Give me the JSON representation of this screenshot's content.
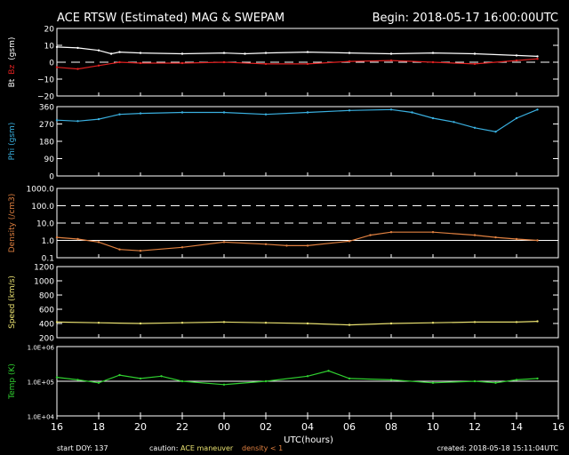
{
  "header": {
    "title": "ACE RTSW (Estimated) MAG & SWEPAM",
    "begin": "Begin: 2018-05-17 16:00:00UTC"
  },
  "footer": {
    "start_doy": "start DOY: 137",
    "caution": "caution:",
    "maneuver": "ACE maneuver",
    "density_note": "density < 1",
    "created": "created: 2018-05-18 15:11:04UTC"
  },
  "colors": {
    "bt": "#ffffff",
    "bz": "#e02020",
    "phi": "#3ab0e0",
    "density": "#e08040",
    "speed": "#e8e070",
    "temp": "#30d030",
    "frame": "#ffffff",
    "maneuver": "#e8e070",
    "density_flag": "#e08040"
  },
  "chart_data": {
    "type": "line",
    "xaxis": {
      "label": "UTC(hours)",
      "range_hours": [
        16,
        40
      ],
      "tick_labels": [
        "16",
        "18",
        "20",
        "22",
        "00",
        "02",
        "04",
        "06",
        "08",
        "10",
        "12",
        "14",
        "16"
      ]
    },
    "panels": [
      {
        "id": "mag",
        "ylabel_parts": [
          {
            "text": "Bt",
            "color": "#ffffff"
          },
          {
            "text": "Bz",
            "color": "#e02020"
          },
          {
            "text": "(gsm)",
            "color": "#ffffff"
          }
        ],
        "ylim": [
          -20,
          20
        ],
        "scale": "linear",
        "ticks": [
          -20,
          -10,
          0,
          10,
          20
        ],
        "tick_labels": [
          "−20",
          "−10",
          "0",
          "10",
          "20"
        ],
        "dashed_ref": [
          0
        ],
        "series": [
          {
            "key": "bt",
            "color": "#ffffff",
            "points": [
              [
                16,
                9
              ],
              [
                17,
                8.5
              ],
              [
                18,
                7
              ],
              [
                18.6,
                5
              ],
              [
                19,
                6
              ],
              [
                20,
                5.5
              ],
              [
                22,
                5
              ],
              [
                24,
                5.5
              ],
              [
                25,
                5
              ],
              [
                26,
                5.5
              ],
              [
                28,
                6
              ],
              [
                30,
                5.5
              ],
              [
                32,
                5
              ],
              [
                34,
                5.5
              ],
              [
                36,
                5
              ],
              [
                38,
                4
              ],
              [
                39,
                3.5
              ]
            ]
          },
          {
            "key": "bz",
            "color": "#e02020",
            "points": [
              [
                16,
                -3
              ],
              [
                17,
                -4
              ],
              [
                18,
                -2
              ],
              [
                19,
                0
              ],
              [
                20,
                -0.5
              ],
              [
                22,
                -0.5
              ],
              [
                24,
                0
              ],
              [
                26,
                -1
              ],
              [
                28,
                -1
              ],
              [
                30,
                0.5
              ],
              [
                32,
                1
              ],
              [
                34,
                0
              ],
              [
                36,
                -1
              ],
              [
                38,
                1
              ],
              [
                39,
                2
              ]
            ]
          }
        ]
      },
      {
        "id": "phi",
        "ylabel_parts": [
          {
            "text": "Phi (gsm)",
            "color": "#3ab0e0"
          }
        ],
        "ylim": [
          0,
          360
        ],
        "scale": "linear",
        "ticks": [
          0,
          90,
          180,
          270,
          360
        ],
        "tick_labels": [
          "0",
          "90",
          "180",
          "270",
          "360"
        ],
        "dashed_ref": [],
        "series": [
          {
            "key": "phi",
            "color": "#3ab0e0",
            "points": [
              [
                16,
                290
              ],
              [
                17,
                285
              ],
              [
                18,
                295
              ],
              [
                19,
                320
              ],
              [
                20,
                325
              ],
              [
                22,
                330
              ],
              [
                24,
                330
              ],
              [
                26,
                320
              ],
              [
                28,
                330
              ],
              [
                30,
                340
              ],
              [
                32,
                345
              ],
              [
                33,
                330
              ],
              [
                34,
                300
              ],
              [
                35,
                280
              ],
              [
                36,
                250
              ],
              [
                37,
                230
              ],
              [
                38,
                300
              ],
              [
                39,
                345
              ]
            ]
          }
        ]
      },
      {
        "id": "density",
        "ylabel_parts": [
          {
            "text": "Density (/cm3)",
            "color": "#e08040"
          }
        ],
        "ylim": [
          0.1,
          1000
        ],
        "scale": "log",
        "ticks": [
          0.1,
          1,
          10,
          100,
          1000
        ],
        "tick_labels": [
          "0.1",
          "1.0",
          "10.0",
          "100.0",
          "1000.0"
        ],
        "dashed_ref": [
          10,
          100
        ],
        "solid_ref": [
          1,
          1000
        ],
        "series": [
          {
            "key": "density",
            "color": "#e08040",
            "points": [
              [
                16,
                1.5
              ],
              [
                17,
                1.2
              ],
              [
                18,
                0.8
              ],
              [
                19,
                0.3
              ],
              [
                20,
                0.25
              ],
              [
                22,
                0.4
              ],
              [
                24,
                0.8
              ],
              [
                26,
                0.6
              ],
              [
                27,
                0.5
              ],
              [
                28,
                0.5
              ],
              [
                30,
                0.9
              ],
              [
                31,
                2
              ],
              [
                32,
                3
              ],
              [
                34,
                3
              ],
              [
                36,
                2
              ],
              [
                37,
                1.5
              ],
              [
                38,
                1.2
              ],
              [
                39,
                1.0
              ]
            ]
          }
        ]
      },
      {
        "id": "speed",
        "ylabel_parts": [
          {
            "text": "Speed (km/s)",
            "color": "#e8e070"
          }
        ],
        "ylim": [
          200,
          1200
        ],
        "scale": "linear",
        "ticks": [
          200,
          400,
          600,
          800,
          1000,
          1200
        ],
        "tick_labels": [
          "200",
          "400",
          "600",
          "800",
          "1000",
          "1200"
        ],
        "dashed_ref": [],
        "series": [
          {
            "key": "speed",
            "color": "#e8e070",
            "points": [
              [
                16,
                420
              ],
              [
                18,
                410
              ],
              [
                20,
                400
              ],
              [
                22,
                410
              ],
              [
                24,
                420
              ],
              [
                26,
                410
              ],
              [
                28,
                400
              ],
              [
                30,
                380
              ],
              [
                32,
                400
              ],
              [
                34,
                410
              ],
              [
                36,
                420
              ],
              [
                38,
                420
              ],
              [
                39,
                430
              ]
            ]
          }
        ]
      },
      {
        "id": "temp",
        "ylabel_parts": [
          {
            "text": "Temp (K)",
            "color": "#30d030"
          }
        ],
        "ylim": [
          10000,
          1000000
        ],
        "scale": "log",
        "ticks": [
          10000,
          100000,
          1000000
        ],
        "tick_labels": [
          "1.0E+04",
          "1.0E+05",
          "1.0E+06"
        ],
        "dashed_ref": [],
        "solid_ref": [
          100000
        ],
        "series": [
          {
            "key": "temp",
            "color": "#30d030",
            "points": [
              [
                16,
                130000
              ],
              [
                17,
                110000
              ],
              [
                18,
                90000
              ],
              [
                19,
                150000
              ],
              [
                20,
                120000
              ],
              [
                21,
                140000
              ],
              [
                22,
                100000
              ],
              [
                24,
                80000
              ],
              [
                26,
                100000
              ],
              [
                28,
                140000
              ],
              [
                29,
                200000
              ],
              [
                30,
                120000
              ],
              [
                32,
                110000
              ],
              [
                34,
                90000
              ],
              [
                36,
                100000
              ],
              [
                37,
                90000
              ],
              [
                38,
                110000
              ],
              [
                39,
                120000
              ]
            ]
          }
        ]
      }
    ]
  }
}
